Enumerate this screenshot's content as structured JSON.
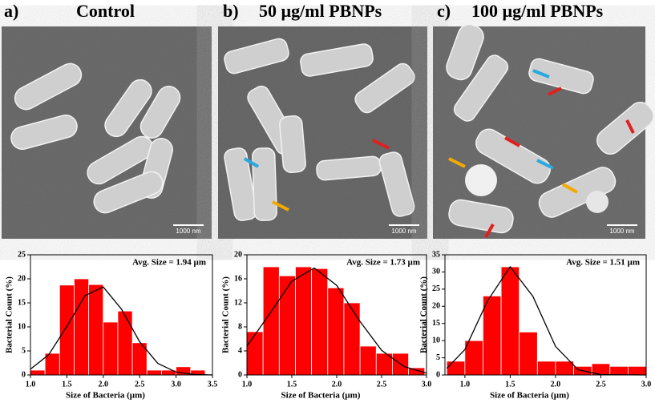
{
  "panels": [
    {
      "label": "a)",
      "title": "Control",
      "scale_bar": "1000 nm"
    },
    {
      "label": "b)",
      "title": "50 µg/ml PBNPs",
      "scale_bar": "1000 nm"
    },
    {
      "label": "c)",
      "title": "100 µg/ml PBNPs",
      "scale_bar": "1000 nm"
    }
  ],
  "chart_data": [
    {
      "type": "histogram",
      "annotation": "Avg. Size = 1.94 µm",
      "xlabel": "Size of Bacteria (µm)",
      "ylabel": "Bacterial Count (%)",
      "bins": [
        1.0,
        1.2,
        1.4,
        1.6,
        1.8,
        2.0,
        2.2,
        2.4,
        2.6,
        2.8,
        3.0,
        3.2,
        3.4
      ],
      "values": [
        1,
        4.5,
        18.7,
        20,
        18.8,
        11,
        13.3,
        6.7,
        1,
        1,
        1.7,
        1
      ],
      "color": "#ff0000",
      "fit": {
        "x": [
          1.0,
          1.25,
          1.5,
          1.75,
          2.0,
          2.25,
          2.5,
          2.75,
          3.0,
          3.25,
          3.5
        ],
        "values": [
          1.2,
          4.2,
          10.1,
          16.5,
          18.3,
          13.7,
          6.9,
          2.4,
          0.6,
          0.1,
          0
        ],
        "color": "#000000"
      },
      "xlim": [
        1.0,
        3.5
      ],
      "ylim": [
        0,
        25
      ],
      "xticks": [
        {
          "value": 1,
          "label": "1.0"
        },
        1.5,
        {
          "value": 2,
          "label": "2.0"
        },
        2.5,
        {
          "value": 3,
          "label": "3.0"
        },
        3.5
      ],
      "yticks": [
        0,
        5,
        10,
        15,
        20,
        25
      ]
    },
    {
      "type": "histogram",
      "annotation": "Avg. Size = 1.73 µm",
      "xlabel": "Size of Bacteria (µm)",
      "ylabel": "Bacterial Count (%)",
      "bins": [
        1.0,
        1.18,
        1.36,
        1.54,
        1.72,
        1.9,
        2.08,
        2.26,
        2.44,
        2.62,
        2.8,
        2.98
      ],
      "values": [
        7.2,
        18,
        16.5,
        18,
        17.7,
        14.5,
        12,
        4.8,
        3.6,
        3.6,
        1.2
      ],
      "color": "#ff0000",
      "fit": {
        "x": [
          1.0,
          1.25,
          1.5,
          1.75,
          2.0,
          2.25,
          2.5,
          2.75,
          3.0
        ],
        "values": [
          4.8,
          10.1,
          15.6,
          17.8,
          14.9,
          9.1,
          4.1,
          1.4,
          0.3
        ],
        "color": "#000000"
      },
      "xlim": [
        1.0,
        3.0
      ],
      "ylim": [
        0,
        20
      ],
      "xticks": [
        {
          "value": 1,
          "label": "1.0"
        },
        1.5,
        {
          "value": 2,
          "label": "2.0"
        },
        2.5,
        {
          "value": 3,
          "label": "3.0"
        }
      ],
      "yticks": [
        0,
        4,
        8,
        12,
        16,
        20
      ]
    },
    {
      "type": "histogram",
      "annotation": "Avg. Size = 1.51 µm",
      "xlabel": "Size of Bacteria (µm)",
      "ylabel": "Bacterial Count (%)",
      "bins": [
        0.8,
        1.0,
        1.2,
        1.4,
        1.6,
        1.8,
        2.0,
        2.2,
        2.4,
        2.6,
        2.8,
        3.0
      ],
      "values": [
        4,
        10,
        23,
        31.5,
        12.5,
        4,
        4,
        2.5,
        3.3,
        2.5,
        2.5
      ],
      "color": "#ff0000",
      "fit": {
        "x": [
          0.8,
          1.0,
          1.25,
          1.5,
          1.75,
          2.0,
          2.25,
          2.5,
          3.0
        ],
        "values": [
          1.9,
          7.4,
          21.6,
          31.5,
          22.9,
          8.3,
          1.5,
          0.1,
          0
        ],
        "color": "#000000"
      },
      "xlim": [
        0.78,
        3.0
      ],
      "ylim": [
        0,
        35
      ],
      "xticks": [
        {
          "value": 1,
          "label": "1.0"
        },
        1.5,
        {
          "value": 2,
          "label": "2.0"
        },
        2.5,
        {
          "value": 3,
          "label": "3.0"
        }
      ],
      "yticks": [
        0,
        5,
        10,
        15,
        20,
        25,
        30,
        35
      ]
    }
  ]
}
